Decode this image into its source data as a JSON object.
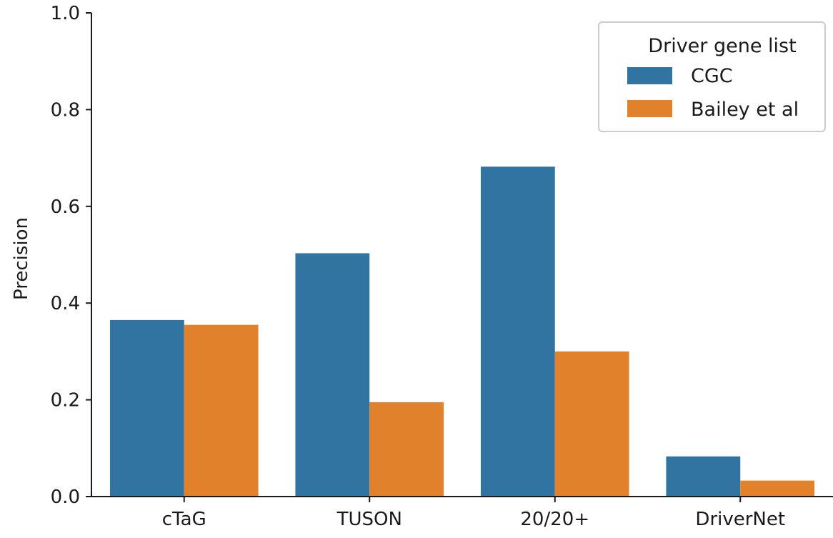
{
  "chart_data": {
    "type": "bar",
    "categories": [
      "cTaG",
      "TUSON",
      "20/20+",
      "DriverNet"
    ],
    "series": [
      {
        "name": "CGC",
        "color": "#3274a1",
        "values": [
          0.365,
          0.503,
          0.682,
          0.083
        ]
      },
      {
        "name": "Bailey et al",
        "color": "#e1812c",
        "values": [
          0.355,
          0.195,
          0.3,
          0.033
        ]
      }
    ],
    "xlabel": "",
    "ylabel": "Precision",
    "ylim": [
      0.0,
      1.0
    ],
    "yticks": [
      "0.0",
      "0.2",
      "0.4",
      "0.6",
      "0.8",
      "1.0"
    ],
    "grid": false,
    "legend": {
      "title": "Driver gene list",
      "placement": "top-right"
    }
  }
}
